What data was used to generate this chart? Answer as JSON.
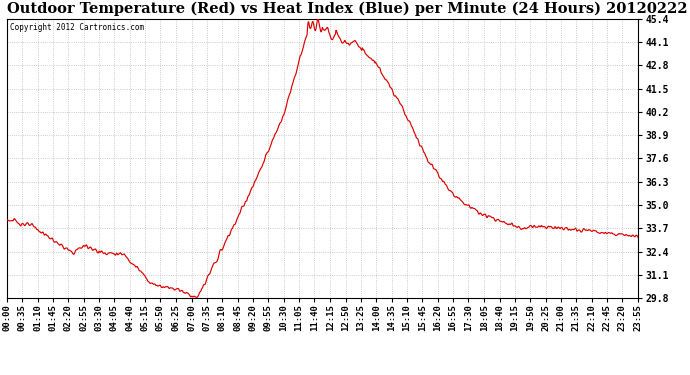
{
  "title": "Outdoor Temperature (Red) vs Heat Index (Blue) per Minute (24 Hours) 20120222",
  "copyright": "Copyright 2012 Cartronics.com",
  "ylabel_right_values": [
    45.4,
    44.1,
    42.8,
    41.5,
    40.2,
    38.9,
    37.6,
    36.3,
    35.0,
    33.7,
    32.4,
    31.1,
    29.8
  ],
  "ymin": 29.8,
  "ymax": 45.4,
  "line_color": "#dd0000",
  "background_color": "#ffffff",
  "grid_color": "#bbbbbb",
  "title_fontsize": 10.5,
  "tick_fontsize": 7,
  "x_labels": [
    "00:00",
    "00:35",
    "01:10",
    "01:45",
    "02:20",
    "02:55",
    "03:30",
    "04:05",
    "04:40",
    "05:15",
    "05:50",
    "06:25",
    "07:00",
    "07:35",
    "08:10",
    "08:45",
    "09:20",
    "09:55",
    "10:30",
    "11:05",
    "11:40",
    "12:15",
    "12:50",
    "13:25",
    "14:00",
    "14:35",
    "15:10",
    "15:45",
    "16:20",
    "16:55",
    "17:30",
    "18:05",
    "18:40",
    "19:15",
    "19:50",
    "20:25",
    "21:00",
    "21:35",
    "22:10",
    "22:45",
    "23:20",
    "23:55"
  ],
  "num_minutes": 1440
}
